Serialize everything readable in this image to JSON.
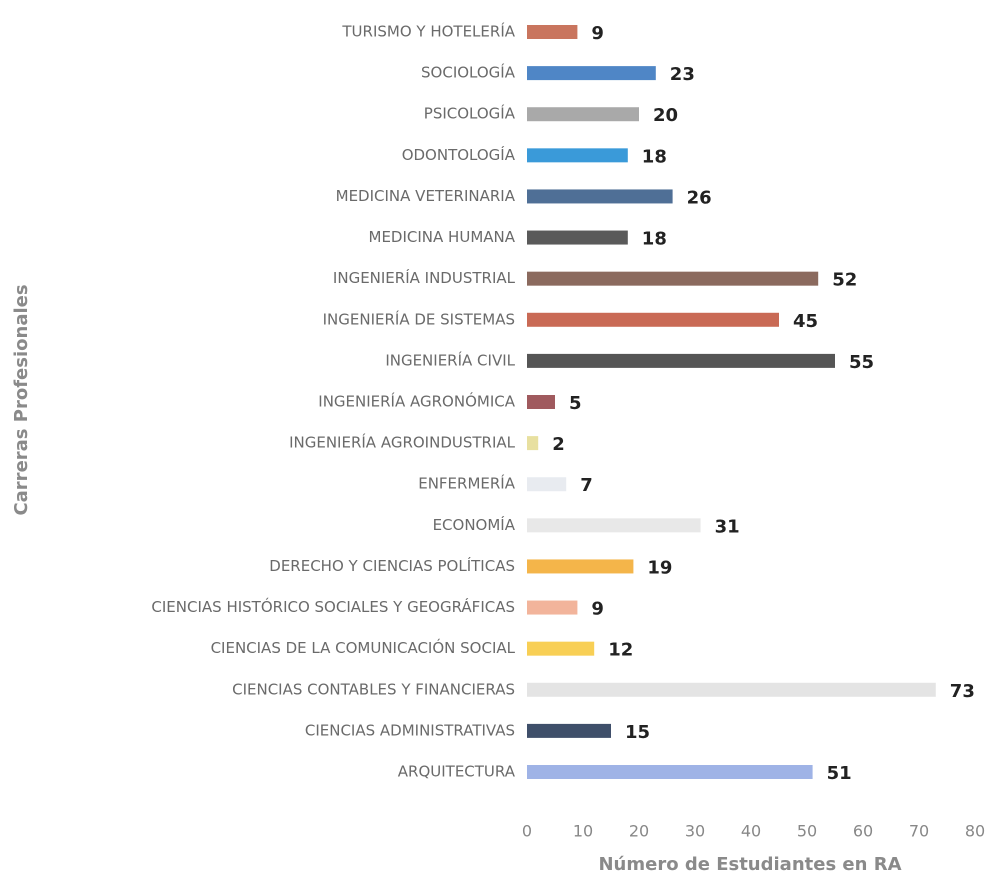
{
  "chart_data": {
    "type": "bar",
    "orientation": "horizontal",
    "categories": [
      "TURISMO Y HOTELERÍA",
      "SOCIOLOGÍA",
      "PSICOLOGÍA",
      "ODONTOLOGÍA",
      "MEDICINA VETERINARIA",
      "MEDICINA HUMANA",
      "INGENIERÍA INDUSTRIAL",
      "INGENIERÍA DE SISTEMAS",
      "INGENIERÍA CIVIL",
      "INGENIERÍA AGRONÓMICA",
      "INGENIERÍA AGROINDUSTRIAL",
      "ENFERMERÍA",
      "ECONOMÍA",
      "DERECHO Y CIENCIAS POLÍTICAS",
      "CIENCIAS HISTÓRICO SOCIALES Y GEOGRÁFICAS",
      "CIENCIAS DE LA COMUNICACIÓN SOCIAL",
      "CIENCIAS CONTABLES Y FINANCIERAS",
      "CIENCIAS ADMINISTRATIVAS",
      "ARQUITECTURA"
    ],
    "values": [
      9,
      23,
      20,
      18,
      26,
      18,
      52,
      45,
      55,
      5,
      2,
      7,
      31,
      19,
      9,
      12,
      73,
      15,
      51
    ],
    "colors": [
      "#c9755e",
      "#4f86c6",
      "#a9a9a9",
      "#3a9ad9",
      "#4f6f96",
      "#5a5a5a",
      "#8b6a5e",
      "#c96a55",
      "#555555",
      "#a05a5e",
      "#e8e0a0",
      "#e8ebf0",
      "#e8e8e8",
      "#f4b54a",
      "#f2b49b",
      "#f8cf55",
      "#e4e4e4",
      "#3f4f6a",
      "#9fb3e6"
    ],
    "xlim": [
      0,
      80
    ],
    "xticks": [
      0,
      10,
      20,
      30,
      40,
      50,
      60,
      70,
      80
    ],
    "xlabel": "Número de Estudiantes en RA",
    "ylabel": "Carreras Profesionales",
    "grid": false
  }
}
